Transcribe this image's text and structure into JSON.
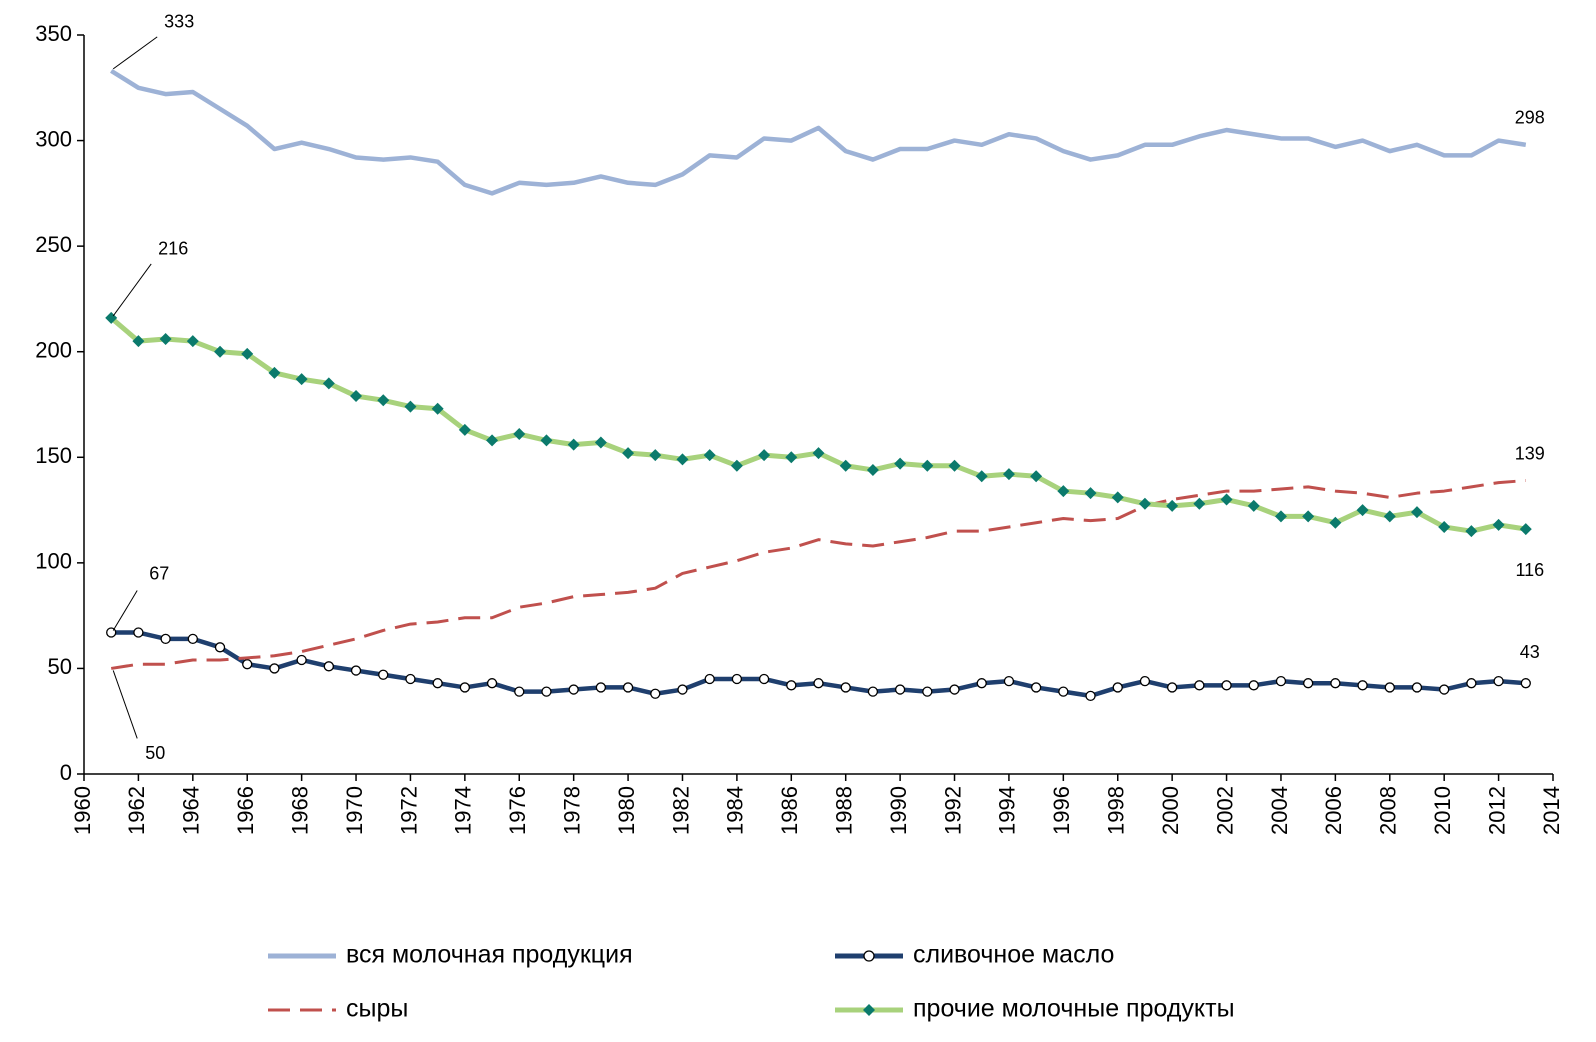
{
  "chart_data": {
    "type": "line",
    "xlim": [
      1960,
      2014
    ],
    "xticks": [
      1960,
      1962,
      1964,
      1966,
      1968,
      1970,
      1972,
      1974,
      1976,
      1978,
      1980,
      1982,
      1984,
      1986,
      1988,
      1990,
      1992,
      1994,
      1996,
      1998,
      2000,
      2002,
      2004,
      2006,
      2008,
      2010,
      2012,
      2014
    ],
    "ylim": [
      0,
      350
    ],
    "yticks": [
      0,
      50,
      100,
      150,
      200,
      250,
      300,
      350
    ],
    "grid": false,
    "legend": "bottom",
    "x": [
      1961,
      1962,
      1963,
      1964,
      1965,
      1966,
      1967,
      1968,
      1969,
      1970,
      1971,
      1972,
      1973,
      1974,
      1975,
      1976,
      1977,
      1978,
      1979,
      1980,
      1981,
      1982,
      1983,
      1984,
      1985,
      1986,
      1987,
      1988,
      1989,
      1990,
      1991,
      1992,
      1993,
      1994,
      1995,
      1996,
      1997,
      1998,
      1999,
      2000,
      2001,
      2002,
      2003,
      2004,
      2005,
      2006,
      2007,
      2008,
      2009,
      2010,
      2011,
      2012,
      2013
    ],
    "series": [
      {
        "name": "вся молочная продукция",
        "color": "#9db2d6",
        "line_style": "solid",
        "marker": null,
        "values": [
          333,
          325,
          322,
          323,
          315,
          307,
          296,
          299,
          296,
          292,
          291,
          292,
          290,
          279,
          275,
          280,
          279,
          280,
          283,
          280,
          279,
          284,
          293,
          292,
          301,
          300,
          306,
          295,
          291,
          296,
          296,
          300,
          298,
          303,
          301,
          295,
          291,
          293,
          298,
          298,
          302,
          305,
          303,
          301,
          301,
          297,
          300,
          295,
          298,
          293,
          293,
          300,
          298
        ]
      },
      {
        "name": "сливочное масло",
        "color": "#1f3f6e",
        "line_style": "solid",
        "marker": "circle",
        "values": [
          67,
          67,
          64,
          64,
          60,
          52,
          50,
          54,
          51,
          49,
          47,
          45,
          43,
          41,
          43,
          39,
          39,
          40,
          41,
          41,
          38,
          40,
          45,
          45,
          45,
          42,
          43,
          41,
          39,
          40,
          39,
          40,
          43,
          44,
          41,
          39,
          37,
          41,
          44,
          41,
          42,
          42,
          42,
          44,
          43,
          43,
          42,
          41,
          41,
          40,
          43,
          44,
          43
        ]
      },
      {
        "name": "сыры",
        "color": "#c0504d",
        "line_style": "dashed",
        "marker": null,
        "values": [
          50,
          52,
          52,
          54,
          54,
          55,
          56,
          58,
          61,
          64,
          68,
          71,
          72,
          74,
          74,
          79,
          81,
          84,
          85,
          86,
          88,
          95,
          98,
          101,
          105,
          107,
          111,
          109,
          108,
          110,
          112,
          115,
          115,
          117,
          119,
          121,
          120,
          121,
          127,
          130,
          132,
          134,
          134,
          135,
          136,
          134,
          133,
          131,
          133,
          134,
          136,
          138,
          139
        ]
      },
      {
        "name": "прочие молочные продукты",
        "color": "#a8d27c",
        "marker_color": "#0b7a6c",
        "line_style": "solid",
        "marker": "diamond",
        "values": [
          216,
          205,
          206,
          205,
          200,
          199,
          190,
          187,
          185,
          179,
          177,
          174,
          173,
          163,
          158,
          161,
          158,
          156,
          157,
          152,
          151,
          149,
          151,
          146,
          151,
          150,
          152,
          146,
          144,
          147,
          146,
          146,
          141,
          142,
          141,
          134,
          133,
          131,
          128,
          127,
          128,
          130,
          127,
          122,
          122,
          119,
          125,
          122,
          124,
          117,
          115,
          118,
          116
        ]
      }
    ]
  }
}
